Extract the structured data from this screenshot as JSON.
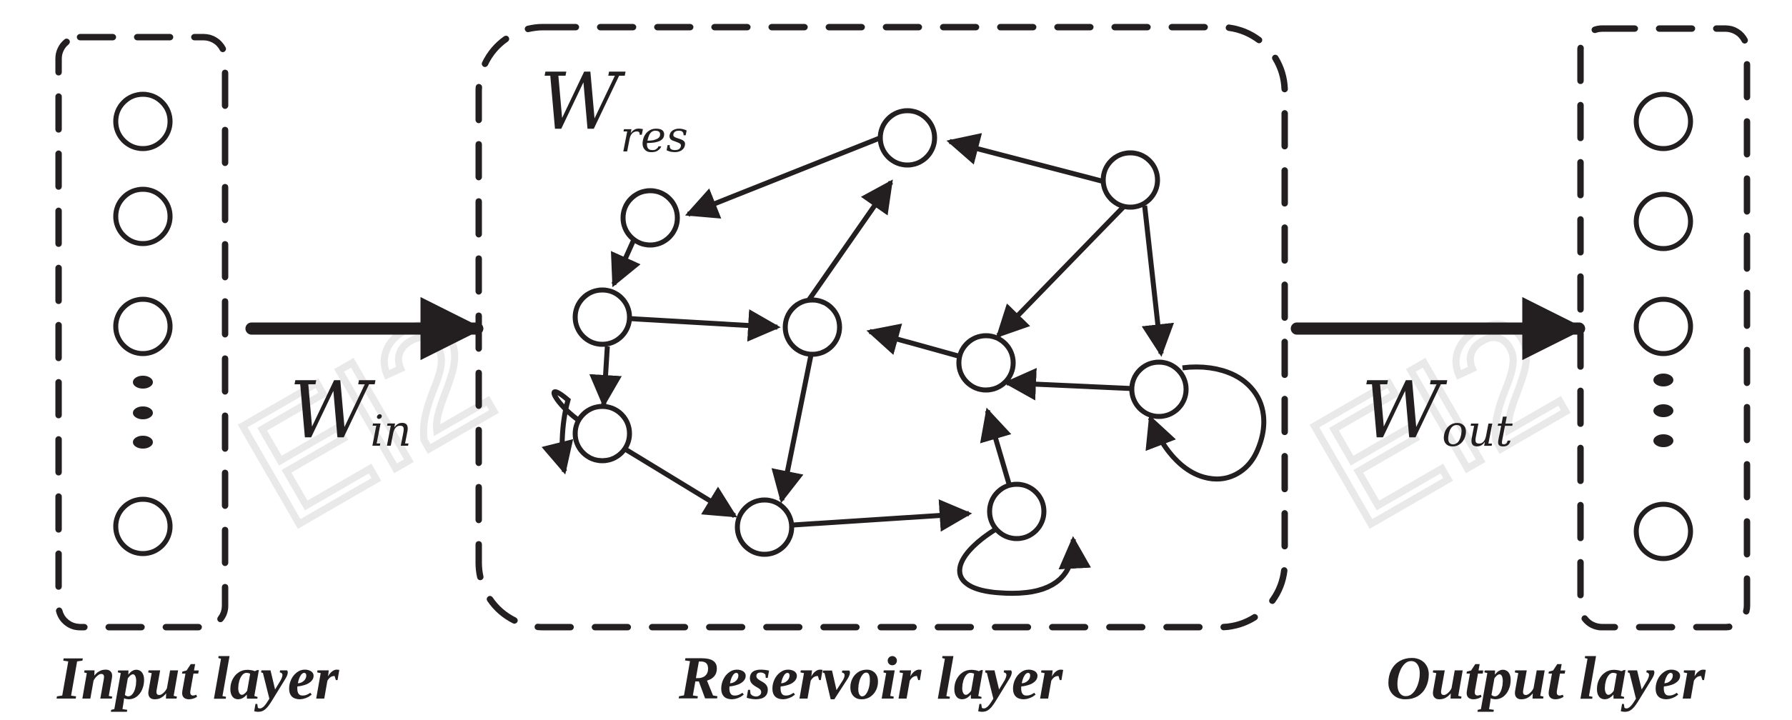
{
  "labels": {
    "input_layer": "Input layer",
    "reservoir_layer": "Reservoir layer",
    "output_layer": "Output layer"
  },
  "weights": {
    "w_in": {
      "main": "W",
      "sub": "in"
    },
    "w_res": {
      "main": "W",
      "sub": "res"
    },
    "w_out": {
      "main": "W",
      "sub": "out"
    }
  },
  "watermark": "EI2",
  "colors": {
    "stroke": "#231f20",
    "background": "#ffffff",
    "watermark": "#e9e9e9"
  }
}
